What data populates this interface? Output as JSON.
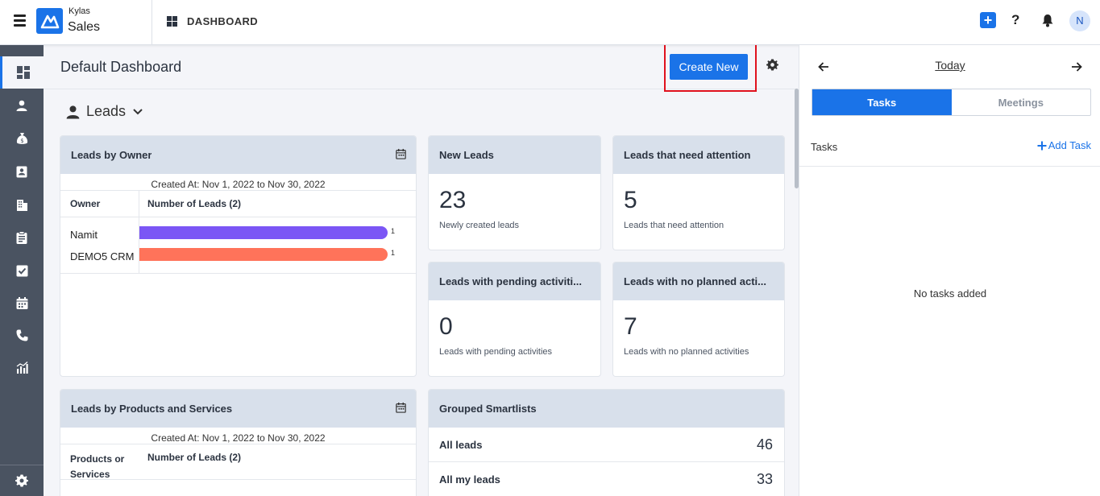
{
  "header": {
    "brand_top": "Kylas",
    "brand_bottom": "Sales",
    "section_title": "DASHBOARD",
    "avatar_initial": "N",
    "add_symbol": "+",
    "help_symbol": "?"
  },
  "sidebar": {
    "items": [
      {
        "icon": "dashboard-icon",
        "active": true
      },
      {
        "icon": "person-icon"
      },
      {
        "icon": "money-bag-icon"
      },
      {
        "icon": "contact-card-icon"
      },
      {
        "icon": "building-icon"
      },
      {
        "icon": "clipboard-icon"
      },
      {
        "icon": "checkbox-icon"
      },
      {
        "icon": "calendar-icon"
      },
      {
        "icon": "phone-icon"
      },
      {
        "icon": "report-chart-icon"
      }
    ],
    "bottom_icon": "settings-gear-icon"
  },
  "main": {
    "title": "Default Dashboard",
    "create_new": "Create New",
    "section": "Leads",
    "leads_by_owner": {
      "title": "Leads by Owner",
      "created": "Created At: Nov 1, 2022 to Nov 30, 2022",
      "col1": "Owner",
      "col2": "Number of Leads (2)",
      "rows": [
        {
          "label": "Namit",
          "value": "1",
          "color": "#7b56f5"
        },
        {
          "label": "DEMO5 CRM",
          "value": "1",
          "color": "#ff735a"
        }
      ]
    },
    "new_leads": {
      "title": "New Leads",
      "count": "23",
      "desc": "Newly created leads"
    },
    "need_attention": {
      "title": "Leads that need attention",
      "count": "5",
      "desc": "Leads that need attention"
    },
    "pending_activities": {
      "title": "Leads with pending activiti...",
      "count": "0",
      "desc": "Leads with pending activities"
    },
    "no_planned": {
      "title": "Leads with no planned acti...",
      "count": "7",
      "desc": "Leads with no planned activities"
    },
    "leads_by_products": {
      "title": "Leads by Products and Services",
      "created": "Created At: Nov 1, 2022 to Nov 30, 2022",
      "col1": "Products or Services",
      "col2": "Number of Leads (2)"
    },
    "grouped_smartlists": {
      "title": "Grouped Smartlists",
      "rows": [
        {
          "label": "All leads",
          "count": "46"
        },
        {
          "label": "All my leads",
          "count": "33"
        }
      ]
    }
  },
  "right_panel": {
    "date_label": "Today",
    "tabs": [
      "Tasks",
      "Meetings"
    ],
    "tasks_label": "Tasks",
    "add_task": "Add Task",
    "empty": "No tasks added"
  }
}
